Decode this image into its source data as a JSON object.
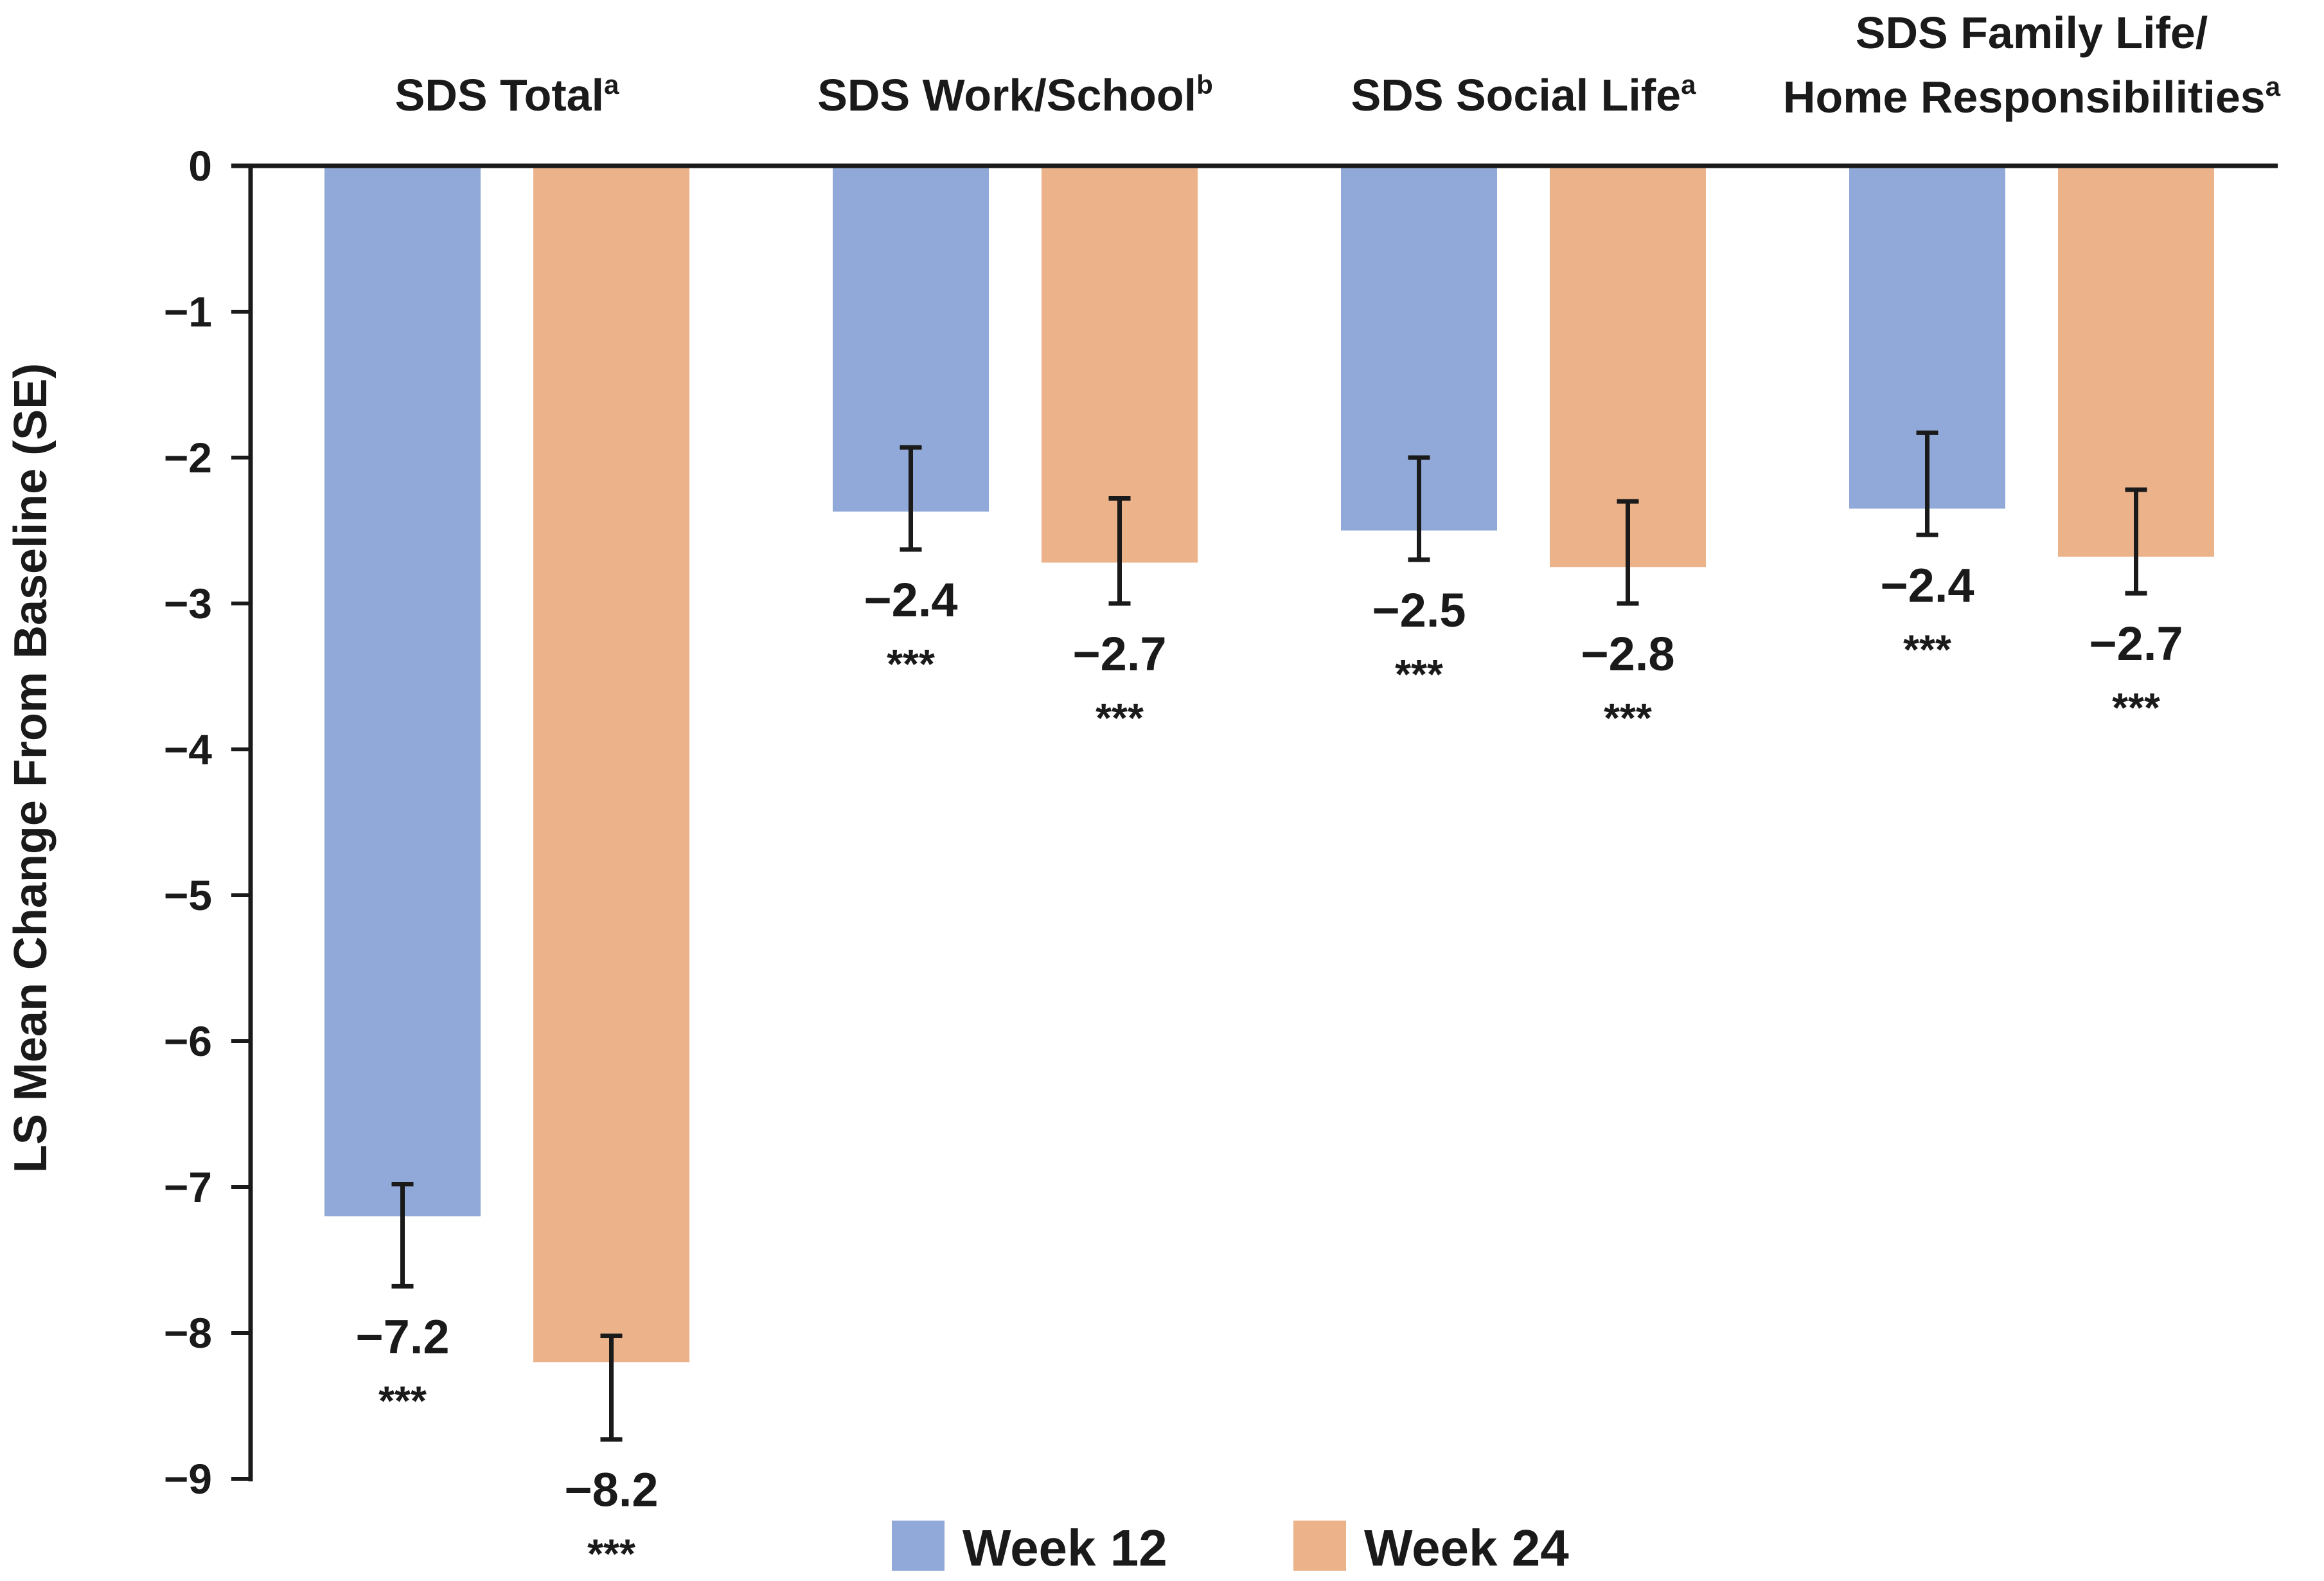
{
  "chart_data": {
    "type": "bar",
    "title": "",
    "ylabel": "LS Mean Change From Baseline (SE)",
    "xlabel": "",
    "ylim": [
      -9,
      0
    ],
    "yticks": [
      0,
      -1,
      -2,
      -3,
      -4,
      -5,
      -6,
      -7,
      -8,
      -9
    ],
    "ytick_labels": [
      "0",
      "−1",
      "−2",
      "−3",
      "−4",
      "−5",
      "−6",
      "−7",
      "−8",
      "−9"
    ],
    "categories": [
      {
        "lines": [
          {
            "text": "SDS Total",
            "sup": "a"
          }
        ]
      },
      {
        "lines": [
          {
            "text": "SDS Work/School",
            "sup": "b"
          }
        ]
      },
      {
        "lines": [
          {
            "text": "SDS Social Life",
            "sup": "a"
          }
        ]
      },
      {
        "lines": [
          {
            "text": "SDS Family Life/",
            "sup": ""
          },
          {
            "text": "Home Responsibilities",
            "sup": "a"
          }
        ]
      }
    ],
    "series": [
      {
        "name": "Week 12",
        "color": "#91a9d8",
        "values": [
          -7.2,
          -2.37,
          -2.5,
          -2.35
        ],
        "se_upper": [
          -6.98,
          -1.93,
          -2.0,
          -1.83
        ],
        "se_lower": [
          -7.68,
          -2.63,
          -2.7,
          -2.53
        ],
        "value_labels": [
          "−7.2",
          "−2.4",
          "−2.5",
          "−2.4"
        ],
        "significance": [
          "***",
          "***",
          "***",
          "***"
        ]
      },
      {
        "name": "Week 24",
        "color": "#ecb28a",
        "values": [
          -8.2,
          -2.72,
          -2.75,
          -2.68
        ],
        "se_upper": [
          -8.02,
          -2.28,
          -2.3,
          -2.22
        ],
        "se_lower": [
          -8.73,
          -3.0,
          -3.0,
          -2.93
        ],
        "value_labels": [
          "−8.2",
          "−2.7",
          "−2.8",
          "−2.7"
        ],
        "significance": [
          "***",
          "***",
          "***",
          "***"
        ]
      }
    ],
    "legend_position": "bottom",
    "grid": false
  }
}
